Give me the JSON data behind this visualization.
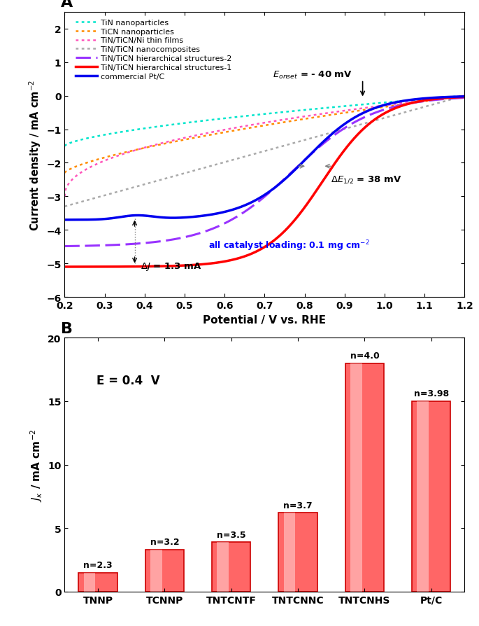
{
  "panel_A": {
    "xlabel": "Potential / V vs. RHE",
    "xlim": [
      0.2,
      1.2
    ],
    "ylim": [
      -6,
      2.5
    ],
    "yticks": [
      -6,
      -5,
      -4,
      -3,
      -2,
      -1,
      0,
      1,
      2
    ],
    "xticks": [
      0.2,
      0.3,
      0.4,
      0.5,
      0.6,
      0.7,
      0.8,
      0.9,
      1.0,
      1.1,
      1.2
    ],
    "curves": {
      "TiN_nano": {
        "label": "TiN nanoparticles",
        "color": "#00E5CC",
        "linestyle": "dotted",
        "linewidth": 1.8
      },
      "TiCN_nano": {
        "label": "TiCN nanoparticles",
        "color": "#FF8C00",
        "linestyle": "dotted",
        "linewidth": 1.8
      },
      "TiNTiCN_Ni": {
        "label": "TiN/TiCN/Ni thin films",
        "color": "#FF55BB",
        "linestyle": "dotted",
        "linewidth": 1.8
      },
      "TiNTiCN_nano": {
        "label": "TiN/TiCN nanocomposites",
        "color": "#AAAAAA",
        "linestyle": "dotted",
        "linewidth": 1.8
      },
      "hierarchical_2": {
        "label": "TiN/TiCN hierarchical structures-2",
        "color": "#9933FF",
        "linestyle": "dashed",
        "linewidth": 2.2
      },
      "hierarchical_1": {
        "label": "TiN/TiCN hierarchical structures-1",
        "color": "#FF0000",
        "linestyle": "solid",
        "linewidth": 2.5
      },
      "PtC": {
        "label": "commercial Pt/C",
        "color": "#0000EE",
        "linestyle": "solid",
        "linewidth": 2.5
      }
    }
  },
  "panel_B": {
    "annotation": "E = 0.4  V",
    "categories": [
      "TNNP",
      "TCNNP",
      "TNTCNTF",
      "TNTCNNC",
      "TNTCNHS",
      "Pt/C"
    ],
    "values": [
      1.5,
      3.3,
      3.9,
      6.2,
      18.0,
      15.0
    ],
    "n_values": [
      "n=2.3",
      "n=3.2",
      "n=3.5",
      "n=3.7",
      "n=4.0",
      "n=3.98"
    ],
    "bar_color_face": "#FF6666",
    "bar_color_edge": "#CC0000",
    "ylim": [
      0,
      20
    ],
    "yticks": [
      0,
      5,
      10,
      15,
      20
    ]
  }
}
